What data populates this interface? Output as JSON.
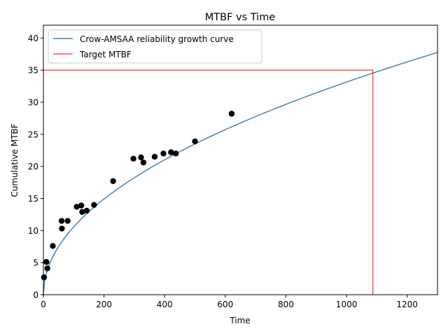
{
  "chart_data": {
    "type": "scatter",
    "title": "MTBF vs Time",
    "xlabel": "Time",
    "ylabel": "Cumulative MTBF",
    "xlim": [
      0,
      1300
    ],
    "ylim": [
      0,
      42
    ],
    "x_ticks": [
      0,
      200,
      400,
      600,
      800,
      1000,
      1200
    ],
    "y_ticks": [
      0,
      5,
      10,
      15,
      20,
      25,
      30,
      35,
      40
    ],
    "grid": false,
    "legend_position": "top-left",
    "colors": {
      "curve": "#4682b4",
      "target": "#ff0000",
      "points": "#000000"
    },
    "series": [
      {
        "name": "Crow-AMSAA reliability growth curve",
        "type": "line",
        "model": "power",
        "coefficient": 1.075,
        "exponent": 0.4963,
        "x_range": [
          0,
          1300
        ]
      },
      {
        "name": "Target MTBF",
        "type": "line",
        "target_value": 35,
        "target_time": 1087
      },
      {
        "type": "scatter",
        "points": [
          [
            2,
            2.7
          ],
          [
            10,
            5.1
          ],
          [
            13,
            4.1
          ],
          [
            31,
            7.6
          ],
          [
            60,
            11.5
          ],
          [
            61,
            10.3
          ],
          [
            80,
            11.5
          ],
          [
            110,
            13.7
          ],
          [
            125,
            13.9
          ],
          [
            128,
            12.9
          ],
          [
            143,
            13.1
          ],
          [
            167,
            14.0
          ],
          [
            230,
            17.7
          ],
          [
            297,
            21.2
          ],
          [
            322,
            21.4
          ],
          [
            330,
            20.6
          ],
          [
            367,
            21.5
          ],
          [
            396,
            22.0
          ],
          [
            421,
            22.2
          ],
          [
            437,
            22.0
          ],
          [
            500,
            23.9
          ],
          [
            621,
            28.2
          ]
        ]
      }
    ]
  }
}
